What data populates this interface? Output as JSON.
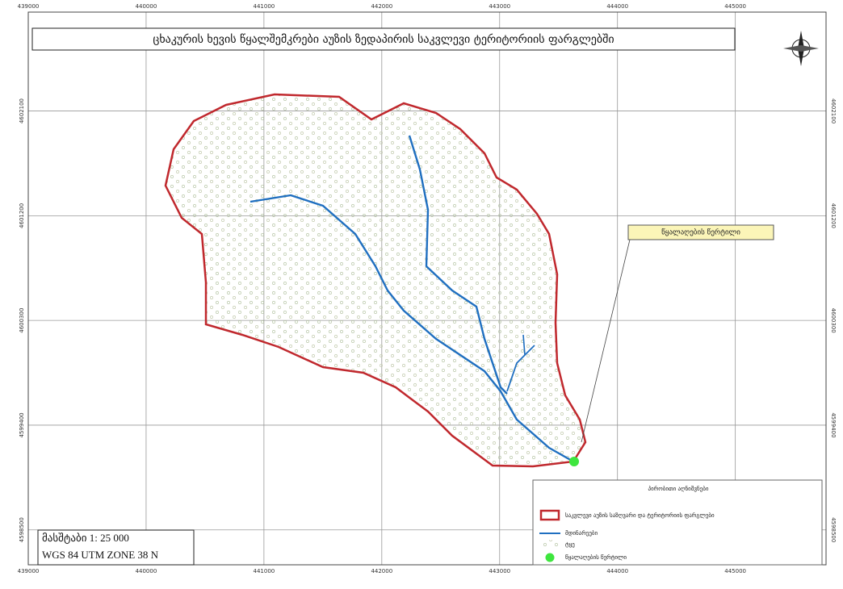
{
  "map": {
    "title": "ცხაკურის ხევის წყალშემკრები აუზის ზედაპირის საკვლევი ტერიტორიის ფარგლებში",
    "callout": "წყალაღების წერტილი",
    "legend": {
      "title": "პირობითი აღნიშვნები",
      "items": [
        "საკვლევი აუზის საზღვარი და ტერიტორიის ფარგლები",
        "მდინარეები",
        "ტყე",
        "წყალაღების წერტილი"
      ]
    },
    "scale": "მასშტაბი 1: 25 000",
    "projection": "WGS 84 UTM ZONE 38 N",
    "xlim": [
      439000,
      445770
    ],
    "xticks": [
      439000,
      440000,
      441000,
      442000,
      443000,
      444000,
      445000
    ],
    "ylim": [
      4598200,
      4602950
    ],
    "yticks": [
      4598500,
      4599400,
      4600300,
      4601200,
      4602100
    ]
  }
}
